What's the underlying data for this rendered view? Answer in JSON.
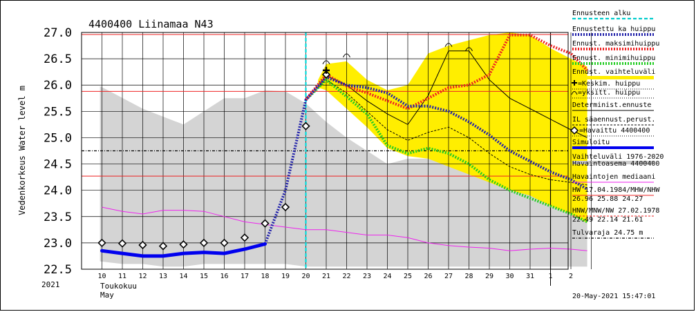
{
  "chart_data": {
    "type": "line",
    "title": "4400400 Liinamaa N43",
    "ylabel": "Vedenkorkeus Water level m",
    "ylim": [
      22.5,
      27.0
    ],
    "yticks": [
      "27.0",
      "26.5",
      "26.0",
      "25.5",
      "25.0",
      "24.5",
      "24.0",
      "23.5",
      "23.0",
      "22.5"
    ],
    "x_day_labels": [
      "10",
      "11",
      "12",
      "13",
      "14",
      "15",
      "16",
      "17",
      "18",
      "19",
      "20",
      "21",
      "22",
      "23",
      "24",
      "25",
      "26",
      "27",
      "28",
      "29",
      "30",
      "31",
      "1",
      "2"
    ],
    "year_label": "2021",
    "month_label_fi": "Toukokuu",
    "month_label_en": "May",
    "timestamp": "20-May-2021 15:47:01",
    "forecast_start_day": 20,
    "reference_lines": {
      "hw": 26.96,
      "mhw": 25.88,
      "nhw": 24.27,
      "flood_limit": 24.75
    },
    "variation_range_1976_2020": {
      "upper": [
        [
          9.9,
          25.98
        ],
        [
          12,
          25.55
        ],
        [
          14,
          25.25
        ],
        [
          15,
          25.5
        ],
        [
          16,
          25.75
        ],
        [
          17,
          25.75
        ],
        [
          18,
          25.9
        ],
        [
          19,
          25.88
        ],
        [
          20,
          25.65
        ],
        [
          21,
          25.3
        ],
        [
          22,
          25.0
        ],
        [
          23,
          24.75
        ],
        [
          24,
          24.5
        ],
        [
          25,
          24.6
        ],
        [
          26,
          24.6
        ],
        [
          27,
          24.5
        ],
        [
          28,
          24.45
        ],
        [
          29,
          24.4
        ],
        [
          30,
          24.3
        ],
        [
          31,
          24.25
        ],
        [
          32,
          24.1
        ],
        [
          33,
          24.1
        ],
        [
          33.8,
          24.4
        ]
      ],
      "lower": [
        [
          9.9,
          22.65
        ],
        [
          11,
          22.6
        ],
        [
          12,
          22.6
        ],
        [
          13,
          22.55
        ],
        [
          14,
          22.55
        ],
        [
          15,
          22.6
        ],
        [
          16,
          22.6
        ],
        [
          17,
          22.6
        ],
        [
          18,
          22.6
        ],
        [
          19,
          22.6
        ],
        [
          20,
          22.55
        ],
        [
          21,
          22.55
        ],
        [
          22,
          22.55
        ],
        [
          23,
          22.55
        ],
        [
          24,
          22.55
        ],
        [
          25,
          22.55
        ],
        [
          26,
          22.55
        ],
        [
          27,
          22.55
        ],
        [
          28,
          22.55
        ],
        [
          29,
          22.55
        ],
        [
          30,
          22.55
        ],
        [
          31,
          22.55
        ],
        [
          32,
          22.55
        ],
        [
          33,
          22.55
        ],
        [
          33.8,
          22.55
        ]
      ]
    },
    "forecast_range": {
      "upper": [
        [
          20.6,
          26.1
        ],
        [
          21,
          26.4
        ],
        [
          22,
          26.45
        ],
        [
          23,
          26.1
        ],
        [
          24,
          25.9
        ],
        [
          25,
          26.0
        ],
        [
          26,
          26.6
        ],
        [
          27,
          26.75
        ],
        [
          28,
          26.85
        ],
        [
          29,
          26.95
        ],
        [
          30,
          27.0
        ],
        [
          31,
          26.95
        ],
        [
          32,
          26.7
        ],
        [
          33,
          26.5
        ],
        [
          33.8,
          26.35
        ]
      ],
      "lower": [
        [
          33.8,
          23.38
        ],
        [
          33,
          23.55
        ],
        [
          32,
          23.7
        ],
        [
          31,
          23.9
        ],
        [
          30,
          24.0
        ],
        [
          29,
          24.15
        ],
        [
          28,
          24.3
        ],
        [
          27,
          24.45
        ],
        [
          26,
          24.6
        ],
        [
          25,
          24.65
        ],
        [
          24,
          24.8
        ],
        [
          23,
          25.2
        ],
        [
          22,
          25.55
        ],
        [
          21,
          25.9
        ],
        [
          20.6,
          25.95
        ]
      ]
    },
    "series": [
      {
        "name": "Havaittu 4400400",
        "color": "#000000",
        "style": "diamonds",
        "points": [
          [
            10,
            23.0
          ],
          [
            11,
            22.99
          ],
          [
            12,
            22.96
          ],
          [
            13,
            22.94
          ],
          [
            14,
            22.97
          ],
          [
            15,
            23.0
          ],
          [
            16,
            23.0
          ],
          [
            17,
            23.1
          ],
          [
            18,
            23.37
          ],
          [
            19,
            23.68
          ],
          [
            20,
            25.22
          ],
          [
            21,
            26.2
          ]
        ]
      },
      {
        "name": "Simuloitu",
        "color": "#0000ee",
        "style": "thick",
        "points": [
          [
            10,
            22.85
          ],
          [
            11,
            22.8
          ],
          [
            12,
            22.75
          ],
          [
            13,
            22.75
          ],
          [
            14,
            22.8
          ],
          [
            15,
            22.82
          ],
          [
            16,
            22.8
          ],
          [
            17,
            22.88
          ],
          [
            18,
            22.98
          ]
        ]
      },
      {
        "name": "Ennustettu ka huippu",
        "color": "#2222aa",
        "style": "dotted-thick",
        "points": [
          [
            18,
            22.98
          ],
          [
            19,
            24.0
          ],
          [
            20,
            25.72
          ],
          [
            21,
            26.15
          ],
          [
            22,
            26.0
          ],
          [
            23,
            25.95
          ],
          [
            24,
            25.85
          ],
          [
            25,
            25.6
          ],
          [
            26,
            25.6
          ],
          [
            27,
            25.5
          ],
          [
            28,
            25.3
          ],
          [
            29,
            25.05
          ],
          [
            30,
            24.75
          ],
          [
            31,
            24.55
          ],
          [
            32,
            24.35
          ],
          [
            33,
            24.2
          ],
          [
            33.8,
            24.02
          ]
        ]
      },
      {
        "name": "Ennust. maksimihuippu",
        "color": "#ee2222",
        "style": "dotted-thick",
        "points": [
          [
            20,
            25.72
          ],
          [
            21,
            26.2
          ],
          [
            22,
            25.98
          ],
          [
            23,
            25.85
          ],
          [
            24,
            25.7
          ],
          [
            25,
            25.55
          ],
          [
            26,
            25.75
          ],
          [
            27,
            25.95
          ],
          [
            28,
            26.0
          ],
          [
            29,
            26.2
          ],
          [
            30,
            26.95
          ],
          [
            31,
            26.95
          ],
          [
            32,
            26.75
          ],
          [
            33,
            26.6
          ],
          [
            33.8,
            26.28
          ]
        ]
      },
      {
        "name": "Ennust. minimihuippu",
        "color": "#22cc22",
        "style": "dotted-thick",
        "points": [
          [
            20,
            25.72
          ],
          [
            21,
            26.1
          ],
          [
            22,
            25.78
          ],
          [
            23,
            25.45
          ],
          [
            24,
            24.85
          ],
          [
            25,
            24.7
          ],
          [
            26,
            24.8
          ],
          [
            27,
            24.7
          ],
          [
            28,
            24.5
          ],
          [
            29,
            24.2
          ],
          [
            30,
            24.0
          ],
          [
            31,
            23.85
          ],
          [
            32,
            23.7
          ],
          [
            33,
            23.55
          ],
          [
            33.8,
            23.4
          ]
        ]
      },
      {
        "name": "Deterministinen ennuste",
        "color": "#000000",
        "style": "thin",
        "points": [
          [
            20.6,
            25.95
          ],
          [
            21,
            26.18
          ],
          [
            22,
            26.0
          ],
          [
            23,
            25.7
          ],
          [
            24,
            25.45
          ],
          [
            25,
            25.25
          ],
          [
            26,
            25.8
          ],
          [
            27,
            26.65
          ],
          [
            28,
            26.65
          ],
          [
            29,
            26.1
          ],
          [
            30,
            25.75
          ],
          [
            31,
            25.55
          ],
          [
            32,
            25.35
          ],
          [
            33,
            25.15
          ],
          [
            33.8,
            25.0
          ]
        ]
      },
      {
        "name": "IL saaennust. perust.",
        "color": "#000000",
        "style": "dashed",
        "points": [
          [
            20.6,
            25.95
          ],
          [
            21,
            26.1
          ],
          [
            22,
            25.85
          ],
          [
            23,
            25.5
          ],
          [
            24,
            25.15
          ],
          [
            25,
            24.95
          ],
          [
            26,
            25.1
          ],
          [
            27,
            25.2
          ],
          [
            28,
            25.0
          ],
          [
            29,
            24.7
          ],
          [
            30,
            24.45
          ],
          [
            31,
            24.3
          ],
          [
            32,
            24.2
          ],
          [
            33,
            24.15
          ],
          [
            33.8,
            24.1
          ]
        ]
      },
      {
        "name": "Havaintojen mediaani",
        "color": "#ee22ee",
        "style": "thin",
        "points": [
          [
            10,
            23.68
          ],
          [
            11,
            23.6
          ],
          [
            12,
            23.55
          ],
          [
            13,
            23.62
          ],
          [
            14,
            23.62
          ],
          [
            15,
            23.6
          ],
          [
            16,
            23.5
          ],
          [
            17,
            23.4
          ],
          [
            18,
            23.35
          ],
          [
            19,
            23.3
          ],
          [
            20,
            23.25
          ],
          [
            21,
            23.25
          ],
          [
            22,
            23.2
          ],
          [
            23,
            23.15
          ],
          [
            24,
            23.15
          ],
          [
            25,
            23.1
          ],
          [
            26,
            23.0
          ],
          [
            27,
            22.95
          ],
          [
            28,
            22.92
          ],
          [
            29,
            22.9
          ],
          [
            30,
            22.85
          ],
          [
            31,
            22.88
          ],
          [
            32,
            22.9
          ],
          [
            33,
            22.88
          ],
          [
            33.8,
            22.85
          ]
        ]
      }
    ],
    "legend": [
      {
        "label": "Ennusteen alku",
        "color": "#00cccc",
        "style": "dashed-cyan"
      },
      {
        "label": "Ennustettu ka huippu",
        "color": "#2222aa",
        "style": "dotted-thick"
      },
      {
        "label": "Ennust. maksimihuippu",
        "color": "#ee2222",
        "style": "dotted-thick"
      },
      {
        "label": "Ennust. minimihuippu",
        "color": "#22cc22",
        "style": "dotted-thick"
      },
      {
        "label": "Ennust. vaihteluväli",
        "color": "#ffee00",
        "style": "band"
      },
      {
        "label": "=Keskim. huippu",
        "color": "#000000",
        "style": "plus-marker"
      },
      {
        "label": "=yksitt. huippu",
        "color": "#000000",
        "style": "arc-marker"
      },
      {
        "label": "Determinist.ennuste",
        "color": "#000000",
        "style": "thin"
      },
      {
        "label": "IL säaennust.perust.",
        "color": "#000000",
        "style": "dashed"
      },
      {
        "label": "=Havaittu 4400400",
        "color": "#000000",
        "style": "diamond-marker"
      },
      {
        "label": "Simuloitu",
        "color": "#0000ee",
        "style": "thick"
      },
      {
        "label": "Vaihteluväli 1976-2020",
        "color": "#cccccc",
        "style": "band"
      },
      {
        "label": "Havaintoasema 4400400",
        "color": "#000000",
        "style": "none"
      },
      {
        "label": "Havaintojen mediaani",
        "color": "#ee22ee",
        "style": "thin"
      },
      {
        "label": "HW 17.04.1984/MHW/NHW",
        "color": "#ee2222",
        "style": "thin"
      },
      {
        "label": "26.96 25.88 24.27",
        "color": "#ee2222",
        "style": "none"
      },
      {
        "label": "HNW/MNW/NW 27.02.1978",
        "color": "#ee2222",
        "style": "dashed"
      },
      {
        "label": "22.49 22.14 21.61",
        "color": "#ee2222",
        "style": "none"
      },
      {
        "label": "Tulvaraja 24.75 m",
        "color": "#000000",
        "style": "dash-dot"
      }
    ]
  }
}
